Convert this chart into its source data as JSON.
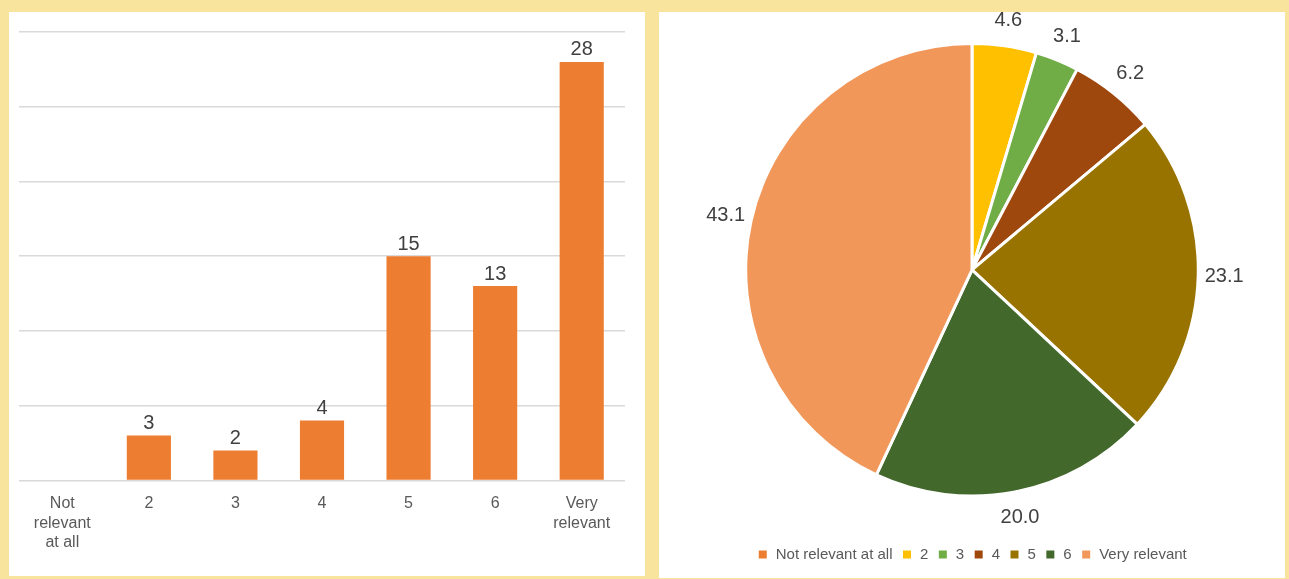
{
  "chart_data": [
    {
      "type": "bar",
      "categories": [
        "Not relevant at all",
        "2",
        "3",
        "4",
        "5",
        "6",
        "Very relevant"
      ],
      "values": [
        0,
        3,
        2,
        4,
        15,
        13,
        28
      ],
      "color": "#ed7d31",
      "value_labels": [
        null,
        "3",
        "2",
        "4",
        "15",
        "13",
        "28"
      ],
      "ylim": [
        0,
        30
      ],
      "yticks": [
        {
          "value": 0,
          "label": null
        },
        {
          "value": 5,
          "label": null
        },
        {
          "value": 10,
          "label": null
        },
        {
          "value": 15,
          "label": null
        },
        {
          "value": 20,
          "label": null
        },
        {
          "value": 25,
          "label": null
        },
        {
          "value": 30,
          "label": null
        }
      ],
      "grid": "y",
      "tick_labels": "x",
      "legend": false
    },
    {
      "type": "pie",
      "categories": [
        "Not relevant at all",
        "2",
        "3",
        "4",
        "5",
        "6",
        "Very relevant"
      ],
      "values": [
        0,
        4.6,
        3.1,
        6.2,
        23.1,
        20.0,
        43.1
      ],
      "colors": [
        "#ed7d31",
        "#ffc000",
        "#70ad47",
        "#9e480e",
        "#997300",
        "#43682b",
        "#f1975a"
      ],
      "value_labels": [
        null,
        "4.6",
        "3.1",
        "6.2",
        "23.1",
        "20.0",
        "43.1"
      ],
      "legend": "bottom"
    }
  ]
}
